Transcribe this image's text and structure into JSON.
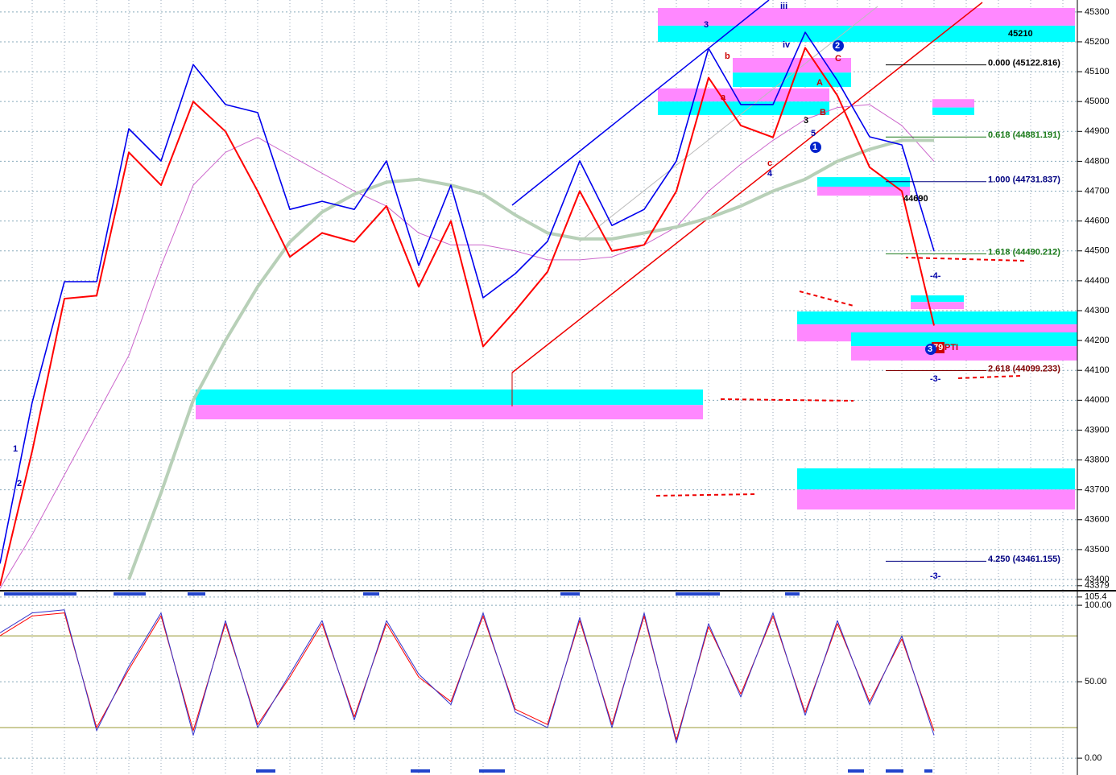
{
  "chart_data": [
    {
      "type": "line",
      "xlim": [
        0,
        1338
      ],
      "ylim": [
        43365,
        45340
      ],
      "yticks": [
        43379,
        43400,
        43500,
        43600,
        43700,
        43800,
        43900,
        44000,
        44100,
        44200,
        44300,
        44400,
        44500,
        44600,
        44700,
        44800,
        44900,
        45000,
        45100,
        45200,
        45300
      ],
      "grid": true,
      "x": [
        0,
        40,
        80,
        120,
        160,
        200,
        240,
        280,
        320,
        360,
        400,
        440,
        480,
        520,
        560,
        600,
        640,
        680,
        720,
        760,
        800,
        840,
        880,
        920,
        960,
        1000,
        1040,
        1080,
        1120,
        1160
      ],
      "series": [
        {
          "color": "#cc66cc",
          "width": 1,
          "values": [
            43370,
            43550,
            43750,
            43950,
            44150,
            44450,
            44720,
            44830,
            44880,
            44820,
            44760,
            44700,
            44650,
            44560,
            44520,
            44520,
            44500,
            44470,
            44470,
            44480,
            44520,
            44580,
            44700,
            44790,
            44870,
            44940,
            44980,
            44990,
            44920,
            44800
          ]
        },
        {
          "color": "#b8d0b8",
          "width": 4,
          "values": [
            null,
            null,
            null,
            null,
            43400,
            43690,
            44000,
            44200,
            44380,
            44530,
            44630,
            44690,
            44730,
            44740,
            44720,
            44690,
            44620,
            44560,
            44540,
            44540,
            44560,
            44580,
            44610,
            44650,
            44700,
            44740,
            44800,
            44840,
            44870,
            44870
          ]
        },
        {
          "color": "#ff0000",
          "width": 2,
          "values": [
            43379,
            43830,
            44340,
            44350,
            44830,
            44720,
            45000,
            44900,
            44700,
            44480,
            44560,
            44530,
            44650,
            44380,
            44600,
            44180,
            44300,
            44430,
            44700,
            44500,
            44520,
            44700,
            45080,
            44920,
            44880,
            45180,
            45020,
            44780,
            44700,
            44250
          ]
        },
        {
          "color": "#0000ee",
          "width": 1.6,
          "values": [
            43453,
            43993,
            44397,
            44397,
            44909,
            44801,
            45124,
            44990,
            44963,
            44639,
            44666,
            44639,
            44801,
            44451,
            44720,
            44343,
            44424,
            44532,
            44801,
            44585,
            44639,
            44801,
            45178,
            44990,
            44990,
            45232,
            45070,
            44882,
            44855,
            44500
          ]
        }
      ],
      "zones": [
        {
          "x": [
            817,
            1335
          ],
          "top": 45313,
          "mid": 45254,
          "bottom": 45200,
          "upper": "#ff88ff",
          "lower": "#00ffff"
        },
        {
          "x": [
            910,
            1057
          ],
          "top": 45146,
          "mid": 45097,
          "bottom": 45049,
          "upper": "#ff88ff",
          "lower": "#00ffff"
        },
        {
          "x": [
            817,
            1030
          ],
          "top": 45044,
          "mid": 45000,
          "bottom": 44955,
          "upper": "#ff88ff",
          "lower": "#00ffff"
        },
        {
          "x": [
            1158,
            1210
          ],
          "top": 45008,
          "mid": 44980,
          "bottom": 44955,
          "upper": "#ff88ff",
          "lower": "#00ffff"
        },
        {
          "x": [
            1015,
            1130
          ],
          "top": 44747,
          "mid": 44715,
          "bottom": 44685,
          "upper": "#00ffff",
          "lower": "#ff88ff"
        },
        {
          "x": [
            1131,
            1197
          ],
          "top": 44351,
          "mid": 44329,
          "bottom": 44305,
          "upper": "#00ffff",
          "lower": "#ff88ff"
        },
        {
          "x": [
            990,
            1338
          ],
          "top": 44297,
          "mid": 44254,
          "bottom": 44197,
          "upper": "#00ffff",
          "lower": "#ff88ff"
        },
        {
          "x": [
            1057,
            1338
          ],
          "top": 44227,
          "mid": 44181,
          "bottom": 44133,
          "upper": "#00ffff",
          "lower": "#ff88ff"
        },
        {
          "x": [
            243,
            873
          ],
          "top": 44036,
          "mid": 43984,
          "bottom": 43936,
          "upper": "#00ffff",
          "lower": "#ff88ff"
        },
        {
          "x": [
            990,
            1335
          ],
          "top": 43772,
          "mid": 43701,
          "bottom": 43634,
          "upper": "#00ffff",
          "lower": "#ff88ff"
        }
      ],
      "fib": [
        {
          "value": 45122.816,
          "label": "0.000 (45122.816)",
          "color": "#000000"
        },
        {
          "value": 44881.191,
          "label": "0.618 (44881.191)",
          "color": "#1a7a1a"
        },
        {
          "value": 44731.837,
          "label": "1.000 (44731.837)",
          "color": "#000080"
        },
        {
          "value": 44490.212,
          "label": "1.618 (44490.212)",
          "color": "#1a7a1a"
        },
        {
          "value": 44099.233,
          "label": "2.618 (44099.233)",
          "color": "#800000"
        },
        {
          "value": 43461.155,
          "label": "4.250 (43461.155)",
          "color": "#000080"
        }
      ],
      "annotations": [
        "45210",
        "44690",
        "3",
        "iii",
        "iv",
        "b",
        "a",
        "c",
        "4",
        "C",
        "A",
        "B",
        "5",
        "3",
        "1",
        "2",
        "-4-",
        "-3-",
        "-3-",
        "79",
        "PTI",
        "1",
        "2",
        "3"
      ]
    },
    {
      "type": "line",
      "xlim": [
        0,
        1338
      ],
      "ylim": [
        -11,
        109
      ],
      "yticks": [
        {
          "value": 0,
          "label": "0.00"
        },
        {
          "value": 50,
          "label": "50.00"
        },
        {
          "value": 100,
          "label": "100.00"
        },
        105.4
      ],
      "grid": true,
      "hlines": [
        20,
        80
      ],
      "x": [
        0,
        40,
        80,
        120,
        160,
        200,
        240,
        280,
        320,
        360,
        400,
        440,
        480,
        520,
        560,
        600,
        640,
        680,
        720,
        760,
        800,
        840,
        880,
        920,
        960,
        1000,
        1040,
        1080,
        1120,
        1160
      ],
      "series": [
        {
          "color": "#ff0000",
          "width": 1,
          "values": [
            80,
            93,
            95,
            20,
            58,
            93,
            18,
            88,
            22,
            53,
            88,
            27,
            88,
            53,
            37,
            93,
            32,
            22,
            90,
            22,
            93,
            12,
            86,
            42,
            93,
            30,
            88,
            37,
            78,
            18
          ]
        },
        {
          "color": "#3333cc",
          "width": 1,
          "values": [
            82,
            95,
            97,
            18,
            60,
            95,
            15,
            90,
            20,
            55,
            90,
            25,
            90,
            55,
            35,
            95,
            30,
            20,
            92,
            20,
            95,
            10,
            88,
            40,
            95,
            28,
            90,
            35,
            80,
            15
          ]
        }
      ]
    }
  ]
}
